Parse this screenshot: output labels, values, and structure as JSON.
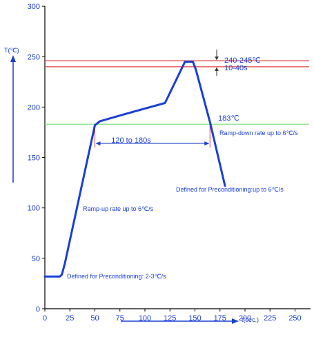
{
  "chart_data": {
    "type": "line",
    "xlabel": "t(sec.)",
    "ylabel": "T(℃)",
    "xlim": [
      0,
      260
    ],
    "ylim": [
      0,
      300
    ],
    "xticks": [
      "0",
      "25",
      "50",
      "75",
      "100",
      "125",
      "150",
      "175",
      "200",
      "225",
      "250"
    ],
    "yticks": [
      "0",
      "50",
      "100",
      "150",
      "200",
      "250",
      "300"
    ],
    "grid": false,
    "series": [
      {
        "color": "#1a3fd6",
        "x": [
          0,
          15,
          17,
          20,
          50,
          55,
          80,
          120,
          123,
          140,
          148,
          151,
          165,
          180
        ],
        "y": [
          32,
          32,
          34,
          45,
          182,
          186,
          193,
          204,
          210,
          245,
          245,
          237,
          185,
          122
        ]
      }
    ],
    "reference_lines": [
      {
        "y": 246,
        "color": "#e34040"
      },
      {
        "y": 240,
        "color": "#e34040"
      },
      {
        "y": 183,
        "color": "#7ee07e"
      }
    ],
    "annotations": {
      "peak_temp": "240-245℃",
      "peak_time": "10-40s",
      "liquidus": "183℃",
      "soak_time": "120 to 180s",
      "ramp_down": "Ramp-down rate up to 6℃/s",
      "ramp_down_precond": "Defined for Preconditioning:up to 6℃/s",
      "ramp_up": "Ramp-up rate up to 6℃/s",
      "ramp_up_precond": "Defined for Preconditioning: 2-3℃/s"
    },
    "soak_interval": [
      50,
      165
    ]
  }
}
